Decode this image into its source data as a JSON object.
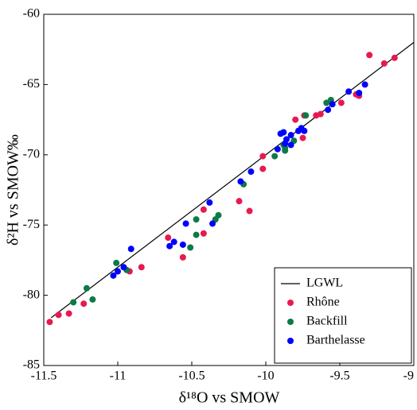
{
  "chart_data": {
    "type": "scatter",
    "x_label": "δ¹⁸O vs SMOW",
    "y_label": "δ²H vs SMOW‰",
    "xlim": [
      -11.5,
      -9
    ],
    "xticks": [
      -11.5,
      -11,
      -10.5,
      -10,
      -9.5,
      -9
    ],
    "ylim": [
      -85,
      -60
    ],
    "yticks": [
      -85,
      -80,
      -75,
      -70,
      -65,
      -60
    ],
    "legend": "lower right",
    "series": [
      {
        "name": "LGWL",
        "type": "line",
        "color": "#000000",
        "x": [
          -11.45,
          -9
        ],
        "values": [
          -81.6,
          -62
        ]
      },
      {
        "name": "Rhône",
        "type": "scatter",
        "color": "#e8194f",
        "x": [
          -11.46,
          -11.4,
          -11.33,
          -11.23,
          -10.92,
          -10.84,
          -10.66,
          -10.56,
          -10.42,
          -10.42,
          -10.18,
          -10.11,
          -10.02,
          -10.02,
          -9.8,
          -9.74,
          -9.66,
          -9.63,
          -9.75,
          -9.49,
          -9.39,
          -9.37,
          -9.3,
          -9.2,
          -9.13
        ],
        "values": [
          -81.9,
          -81.4,
          -81.3,
          -80.6,
          -78.3,
          -78.0,
          -75.9,
          -77.3,
          -75.6,
          -73.9,
          -73.3,
          -74.0,
          -71.0,
          -70.1,
          -67.5,
          -67.2,
          -67.2,
          -67.1,
          -68.8,
          -66.3,
          -65.7,
          -65.8,
          -62.9,
          -63.5,
          -63.1
        ]
      },
      {
        "name": "Backfill",
        "type": "scatter",
        "color": "#0e7a45",
        "x": [
          -11.3,
          -11.21,
          -11.17,
          -11.01,
          -10.94,
          -10.51,
          -10.47,
          -10.32,
          -10.34,
          -10.47,
          -10.15,
          -9.94,
          -9.88,
          -9.87,
          -9.81,
          -9.73,
          -9.59,
          -9.56,
          -9.87
        ],
        "values": [
          -80.5,
          -79.5,
          -80.3,
          -77.7,
          -78.2,
          -76.6,
          -75.7,
          -74.3,
          -74.6,
          -74.6,
          -72.1,
          -70.1,
          -69.3,
          -69.5,
          -69.0,
          -67.2,
          -66.3,
          -66.1,
          -69.7
        ]
      },
      {
        "name": "Barthelasse",
        "type": "scatter",
        "color": "#0000ff",
        "x": [
          -11.03,
          -11.0,
          -10.96,
          -10.91,
          -10.62,
          -10.65,
          -10.56,
          -10.54,
          -10.38,
          -10.36,
          -10.17,
          -10.1,
          -9.92,
          -9.9,
          -9.88,
          -9.86,
          -9.83,
          -9.78,
          -9.76,
          -9.74,
          -9.87,
          -9.83,
          -9.58,
          -9.55,
          -9.44,
          -9.37,
          -9.33
        ],
        "values": [
          -78.6,
          -78.3,
          -78.0,
          -76.7,
          -76.2,
          -76.5,
          -76.4,
          -74.9,
          -73.4,
          -74.9,
          -71.9,
          -71.2,
          -69.6,
          -68.5,
          -68.4,
          -68.9,
          -68.6,
          -68.3,
          -68.1,
          -68.3,
          -69.2,
          -69.3,
          -66.8,
          -66.4,
          -65.5,
          -65.6,
          -65.0
        ]
      }
    ]
  }
}
